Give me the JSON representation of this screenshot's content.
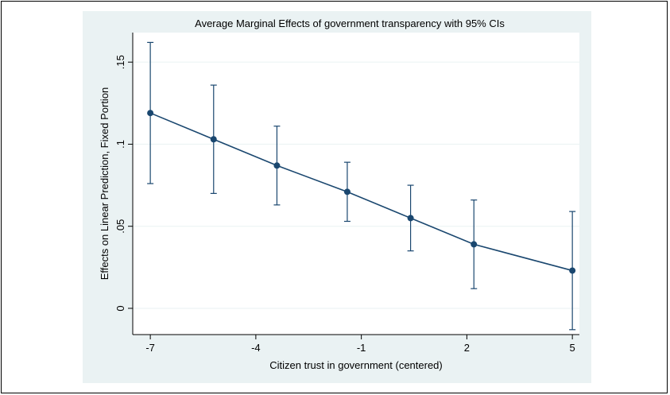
{
  "chart_data": {
    "type": "line",
    "title": "Average Marginal Effects of government transparency with 95% CIs",
    "xlabel": "Citizen trust in government (centered)",
    "ylabel": "Effects on Linear Prediction, Fixed Portion",
    "xlim": [
      -7.5,
      5.2
    ],
    "ylim": [
      -0.016,
      0.168
    ],
    "x_ticks": [
      -7,
      -4,
      -1,
      2,
      5
    ],
    "x_tick_labels": [
      "-7",
      "-4",
      "-1",
      "2",
      "5"
    ],
    "y_ticks": [
      0,
      0.05,
      0.1,
      0.15
    ],
    "y_tick_labels": [
      "0",
      ".05",
      ".1",
      ".15"
    ],
    "grid": true,
    "colors": {
      "outer_background": "#eaf2f3",
      "plot_background": "#ffffff",
      "grid": "#eaf2f3",
      "series": "#1a476f"
    },
    "series": [
      {
        "x": [
          -7,
          -5.2,
          -3.4,
          -1.4,
          0.4,
          2.2,
          5
        ],
        "y": [
          0.119,
          0.103,
          0.087,
          0.071,
          0.055,
          0.039,
          0.023
        ],
        "ci_lower": [
          0.076,
          0.07,
          0.063,
          0.053,
          0.035,
          0.012,
          -0.013
        ],
        "ci_upper": [
          0.162,
          0.136,
          0.111,
          0.089,
          0.075,
          0.066,
          0.059
        ]
      }
    ]
  }
}
